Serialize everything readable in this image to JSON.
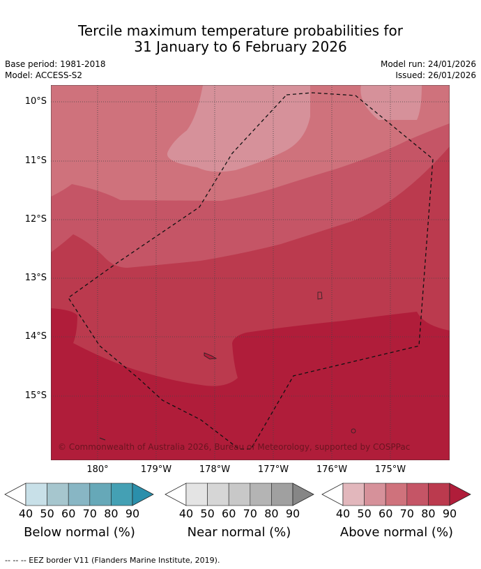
{
  "title_line1": "Tercile maximum temperature probabilities for",
  "title_line2": "31 January to 6 February 2026",
  "base_period": "Base period: 1981-2018",
  "model": "Model: ACCESS-S2",
  "model_run": "Model run: 24/01/2026",
  "issued": "Issued: 26/01/2026",
  "copyright": "© Commonwealth of Australia 2026, Bureau of Meteorology, supported by COSPPac",
  "lat_labels": [
    "10°S",
    "11°S",
    "12°S",
    "13°S",
    "14°S",
    "15°S"
  ],
  "lon_labels": [
    "180°",
    "179°W",
    "178°W",
    "177°W",
    "176°W",
    "175°W"
  ],
  "colorbars": [
    {
      "label": "Below normal (%)",
      "ticks": [
        "40",
        "50",
        "60",
        "70",
        "80",
        "90"
      ],
      "colors": [
        "#ffffff",
        "#c8e0e8",
        "#a6c6ce",
        "#88b6c4",
        "#66a8b8",
        "#44a0b4",
        "#2b8fab"
      ]
    },
    {
      "label": "Near normal (%)",
      "ticks": [
        "40",
        "50",
        "60",
        "70",
        "80",
        "90"
      ],
      "colors": [
        "#ffffff",
        "#e4e4e4",
        "#d6d6d6",
        "#c8c8c8",
        "#b4b4b4",
        "#a0a0a0",
        "#868686"
      ]
    },
    {
      "label": "Above normal (%)",
      "ticks": [
        "40",
        "50",
        "60",
        "70",
        "80",
        "90"
      ],
      "colors": [
        "#ffffff",
        "#e2b7bc",
        "#d6919a",
        "#cf727c",
        "#c55566",
        "#bb3a4e",
        "#b01d3a"
      ]
    }
  ],
  "footnote": "--  --  -- EEZ border V11 (Flanders Marine Institute, 2019).",
  "map_colors": {
    "p60": "#d6919a",
    "p70": "#cf727c",
    "p80a": "#c55566",
    "p80b": "#bb3a4e",
    "p90": "#b01d3a"
  }
}
